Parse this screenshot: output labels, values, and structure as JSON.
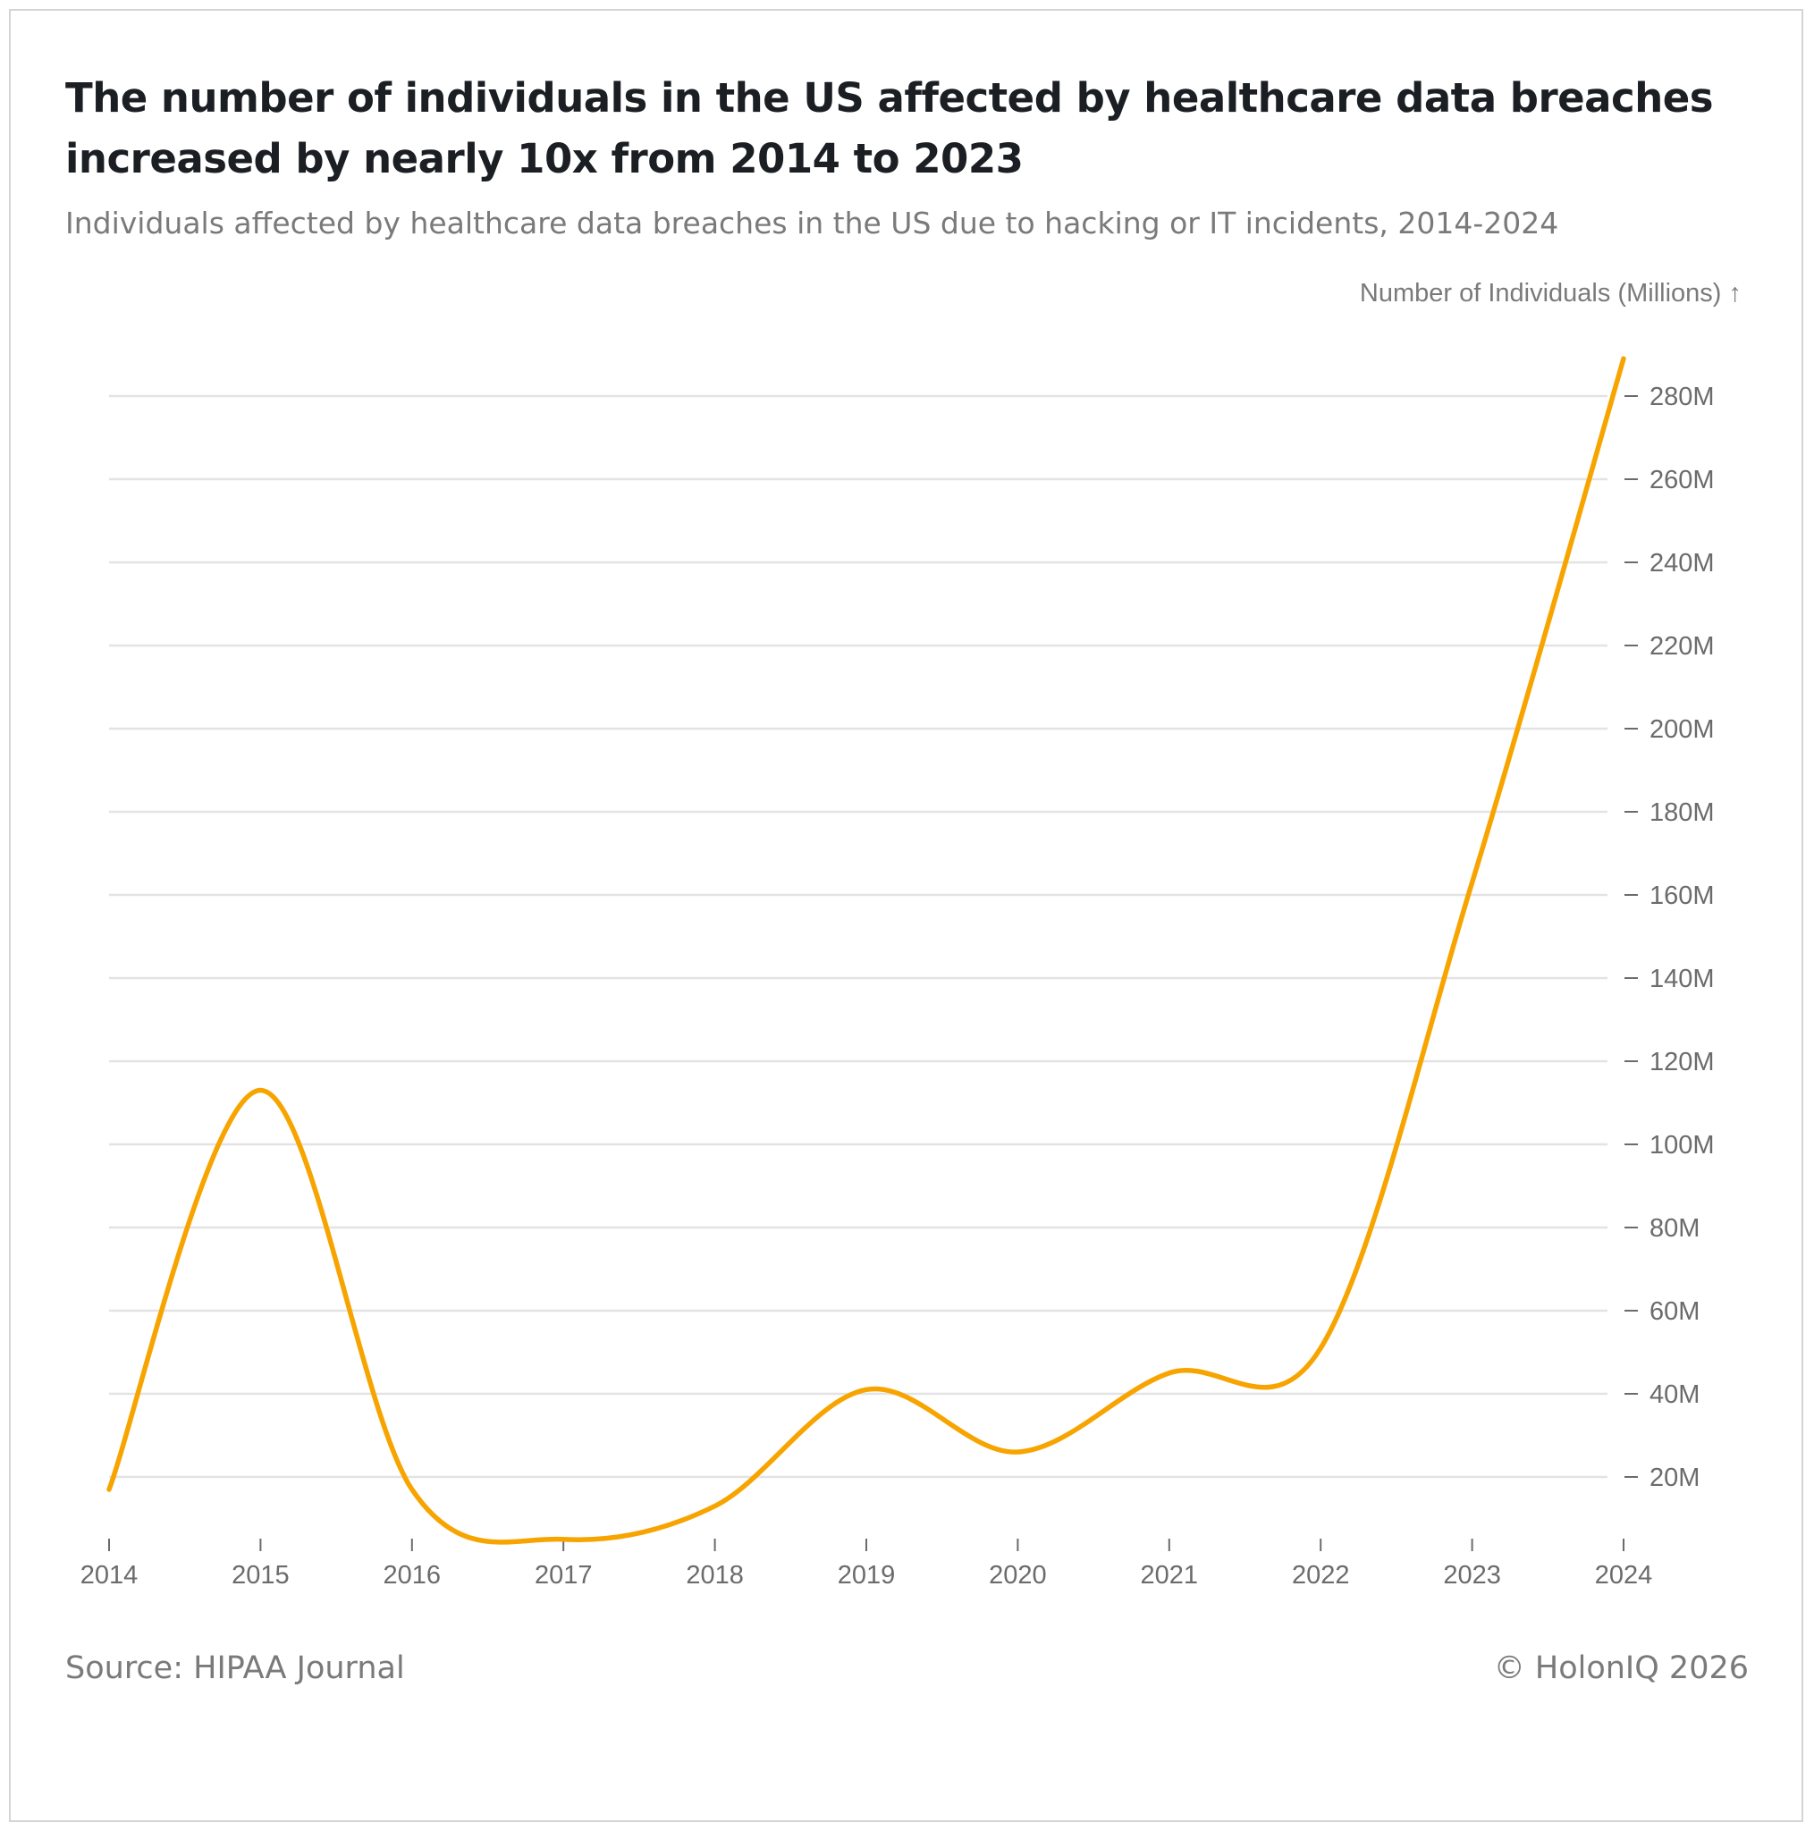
{
  "header": {
    "title": "The number of individuals in the US affected by healthcare data breaches increased by nearly 10x from 2014 to 2023",
    "subtitle": "Individuals affected by healthcare data breaches in the US due to hacking or IT incidents, 2014-2024"
  },
  "footer": {
    "source": "Source: HIPAA Journal",
    "copyright": "© HolonIQ 2026"
  },
  "chart_data": {
    "type": "line",
    "title": "The number of individuals in the US affected by healthcare data breaches increased by nearly 10x from 2014 to 2023",
    "subtitle": "Individuals affected by healthcare data breaches in the US due to hacking or IT incidents, 2014-2024",
    "xlabel": "",
    "ylabel": "Number of Individuals (Millions) ↑",
    "x": [
      "2014",
      "2015",
      "2016",
      "2017",
      "2018",
      "2019",
      "2020",
      "2021",
      "2022",
      "2023",
      "2024"
    ],
    "series": [
      {
        "name": "Individuals affected",
        "color": "#f7a400",
        "values": [
          17,
          113,
          17,
          5,
          13,
          41,
          26,
          45,
          51,
          163,
          289
        ]
      }
    ],
    "ylim": [
      5,
      289
    ],
    "yticks": [
      20,
      40,
      60,
      80,
      100,
      120,
      140,
      160,
      180,
      200,
      220,
      240,
      260,
      280
    ],
    "ytick_labels": [
      "20M",
      "40M",
      "60M",
      "80M",
      "100M",
      "120M",
      "140M",
      "160M",
      "180M",
      "200M",
      "220M",
      "240M",
      "260M",
      "280M"
    ],
    "y_axis_side": "right",
    "grid": true,
    "colors": {
      "line": "#f7a400",
      "grid": "#e3e3e3",
      "tick": "#6b6b6b"
    }
  }
}
